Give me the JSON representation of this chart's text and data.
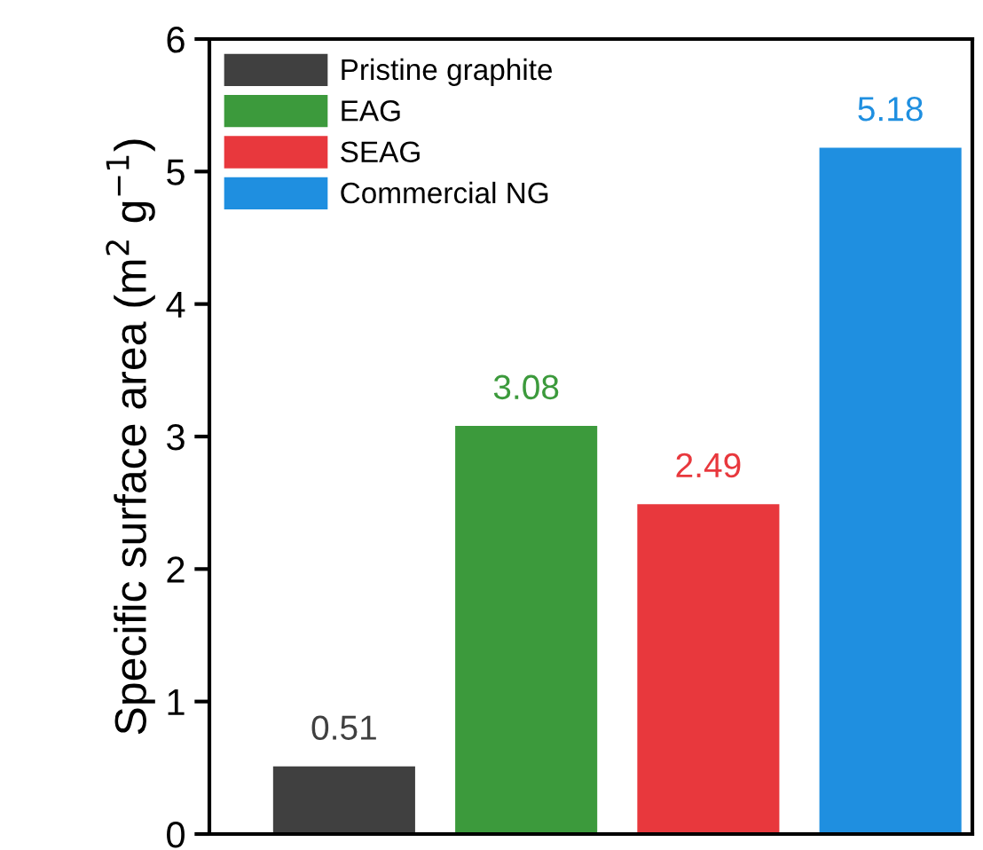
{
  "chart_data": {
    "type": "bar",
    "ylabel": "Specific surface area (m$^{2}$ g$^{−1}$)",
    "categories": [
      null,
      null,
      null,
      null
    ],
    "series": [
      {
        "name": "Pristine graphite",
        "color": "#404040",
        "values": [
          0.51,
          null,
          null,
          null
        ]
      },
      {
        "name": "EAG",
        "color": "#3c9a3c",
        "values": [
          null,
          3.08,
          null,
          null
        ]
      },
      {
        "name": "SEAG",
        "color": "#e8383d",
        "values": [
          null,
          null,
          2.49,
          null
        ]
      },
      {
        "name": "Commercial NG",
        "color": "#1f8fe0",
        "values": [
          null,
          null,
          null,
          5.18
        ]
      }
    ],
    "ylim": [
      0,
      6
    ],
    "yticks": [
      0,
      1,
      2,
      3,
      4,
      5,
      6
    ],
    "data_labels": true,
    "legend": "top left",
    "grid": false,
    "tick_labels": "y"
  }
}
